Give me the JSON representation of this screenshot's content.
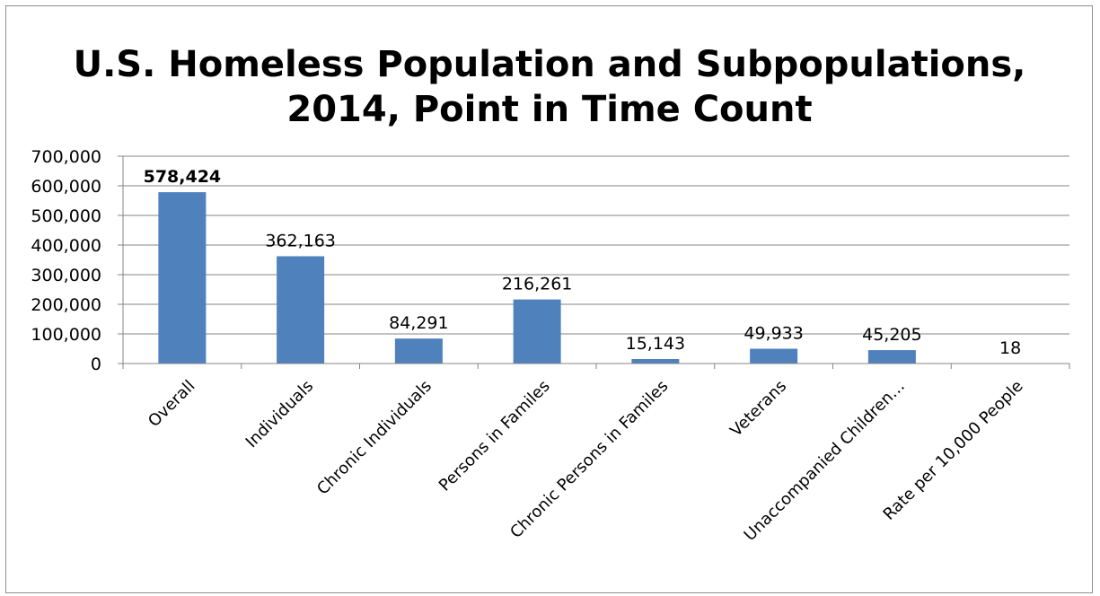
{
  "chart_data": {
    "type": "bar",
    "title_lines": [
      "U.S. Homeless Population and Subpopulations,",
      "2014, Point in Time Count"
    ],
    "categories": [
      "Overall",
      "Individuals",
      "Chronic Individuals",
      "Persons in Familes",
      "Chronic Persons in Familes",
      "Veterans",
      "Unaccompanied Children…",
      "Rate per 10,000 People"
    ],
    "values": [
      578424,
      362163,
      84291,
      216261,
      15143,
      49933,
      45205,
      18
    ],
    "data_labels": [
      "578,424",
      "362,163",
      "84,291",
      "216,261",
      "15,143",
      "49,933",
      "45,205",
      "18"
    ],
    "bold_label_index": 0,
    "ylim": [
      0,
      700000
    ],
    "y_ticks": [
      0,
      100000,
      200000,
      300000,
      400000,
      500000,
      600000,
      700000
    ],
    "y_tick_labels": [
      "0",
      "100,000",
      "200,000",
      "300,000",
      "400,000",
      "500,000",
      "600,000",
      "700,000"
    ],
    "grid": true,
    "legend": "none",
    "bar_color": "#4f81bd",
    "grid_color": "#868686"
  }
}
